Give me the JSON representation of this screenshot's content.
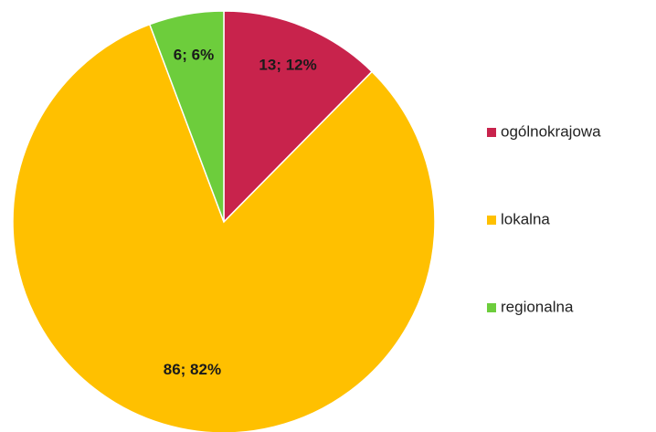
{
  "chart_data": {
    "type": "pie",
    "categories": [
      "ogólnokrajowa",
      "lokalna",
      "regionalna"
    ],
    "values": [
      13,
      86,
      6
    ],
    "value_labels": [
      "13; 12%",
      "86; 82%",
      "6; 6%"
    ],
    "colors": [
      "#c8234c",
      "#ffc000",
      "#6dcd3c"
    ],
    "legend": "right"
  }
}
